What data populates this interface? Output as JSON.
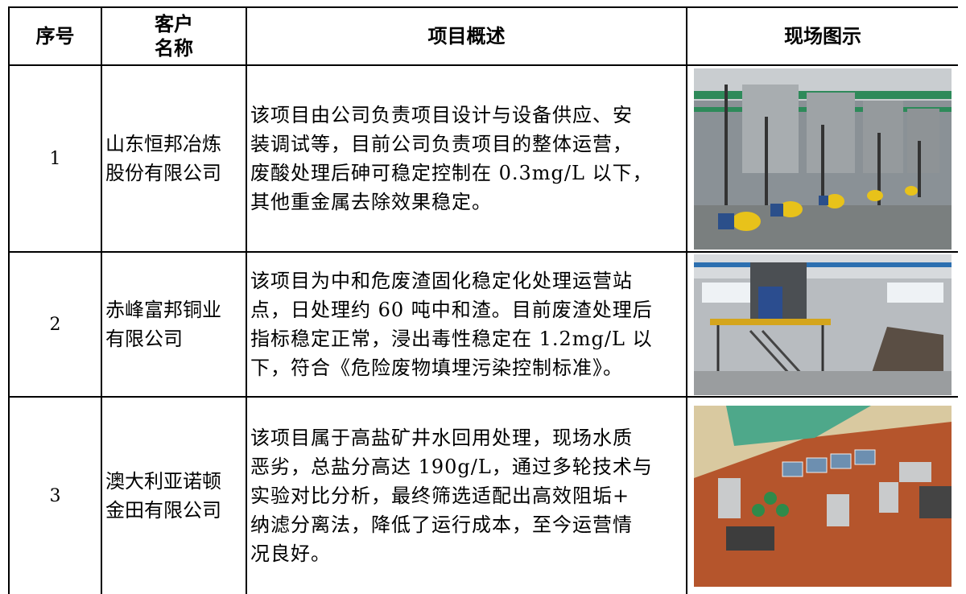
{
  "table": {
    "header": [
      "序号",
      [
        "客户",
        "名称"
      ],
      "项目概述",
      "现场图示"
    ],
    "rows": [
      {
        "no": "1",
        "name": [
          "山东恒邦冶炼",
          "股份有限公司"
        ],
        "description": [
          "该项目由公司负责项目设计与设备供应、安",
          "装调试等，目前公司负责项目的整体运营，",
          "废酸处理后砷可稳定控制在 0.3mg/L 以下，",
          "其他重金属去除效果稳定。"
        ]
      },
      {
        "no": "2",
        "name": [
          "赤峰富邦铜业",
          "有限公司"
        ],
        "description": [
          "该项目为中和危废渣固化稳定化处理运营站",
          "点，日处理约 60 吨中和渣。目前废渣处理后",
          "指标稳定正常，浸出毒性稳定在 1.2mg/L 以",
          "下，符合《危险废物填埋污染控制标准》。"
        ]
      },
      {
        "no": "3",
        "name": [
          "澳大利亚诺顿",
          "金田有限公司"
        ],
        "description": [
          "该项目属于高盐矿井水回用处理，现场水质",
          "恶劣，总盐分高达 190g/L，通过多轮技术与",
          "实验对比分析，最终筛选适配出高效阻垢+",
          "纳滤分离法，降低了运行成本，至今运营情",
          "况良好。"
        ]
      }
    ]
  }
}
